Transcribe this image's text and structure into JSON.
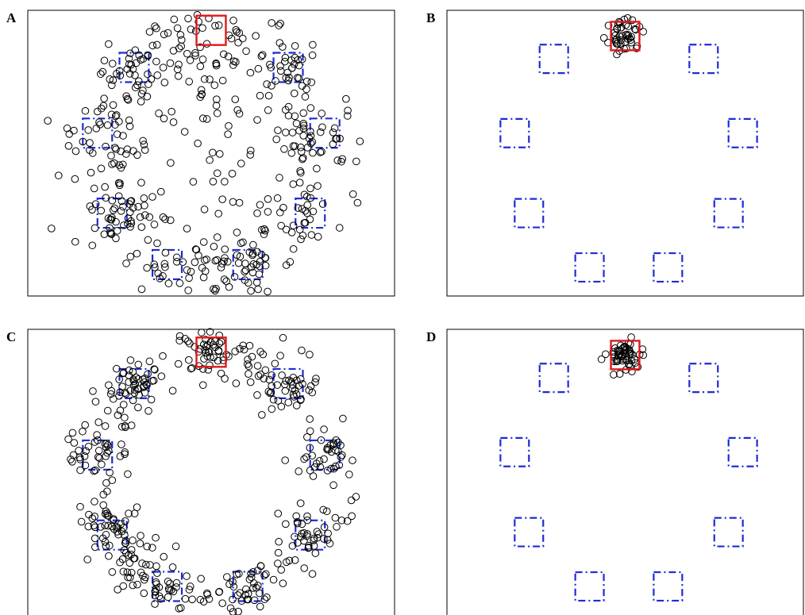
{
  "chart_data": [
    {
      "panel": "A",
      "type": "scatter",
      "xlim": [
        0,
        100
      ],
      "ylim": [
        0,
        100
      ],
      "grid": false,
      "target": {
        "x": 50,
        "y": 93
      },
      "distractors": [
        {
          "x": 29,
          "y": 80
        },
        {
          "x": 71,
          "y": 80
        },
        {
          "x": 19,
          "y": 57
        },
        {
          "x": 81,
          "y": 57
        },
        {
          "x": 23,
          "y": 29
        },
        {
          "x": 77,
          "y": 29
        },
        {
          "x": 38,
          "y": 11
        },
        {
          "x": 60,
          "y": 11
        }
      ],
      "box_half_width": 4,
      "dot_model": {
        "style": "spread",
        "seed": 11,
        "count": 480
      },
      "colors": {
        "target": "#e0191b",
        "distractor": "#1d2bd6",
        "marker": "#000000"
      }
    },
    {
      "panel": "B",
      "type": "scatter",
      "xlim": [
        0,
        100
      ],
      "ylim": [
        0,
        100
      ],
      "grid": false,
      "target": {
        "x": 50,
        "y": 91
      },
      "distractors": [
        {
          "x": 30,
          "y": 83
        },
        {
          "x": 72,
          "y": 83
        },
        {
          "x": 19,
          "y": 57
        },
        {
          "x": 83,
          "y": 57
        },
        {
          "x": 23,
          "y": 29
        },
        {
          "x": 79,
          "y": 29
        },
        {
          "x": 40,
          "y": 10
        },
        {
          "x": 62,
          "y": 10
        }
      ],
      "box_half_width": 4,
      "dot_model": {
        "style": "cluster",
        "seed": 23,
        "count": 46,
        "sd": 2.2
      },
      "colors": {
        "target": "#e0191b",
        "distractor": "#1d2bd6",
        "marker": "#000000"
      }
    },
    {
      "panel": "C",
      "type": "scatter",
      "xlim": [
        0,
        100
      ],
      "ylim": [
        0,
        100
      ],
      "grid": false,
      "target": {
        "x": 50,
        "y": 92
      },
      "distractors": [
        {
          "x": 29,
          "y": 81
        },
        {
          "x": 71,
          "y": 81
        },
        {
          "x": 19,
          "y": 56
        },
        {
          "x": 81,
          "y": 56
        },
        {
          "x": 23,
          "y": 28
        },
        {
          "x": 77,
          "y": 28
        },
        {
          "x": 38,
          "y": 10
        },
        {
          "x": 60,
          "y": 10
        }
      ],
      "box_half_width": 4,
      "dot_model": {
        "style": "ring",
        "seed": 37,
        "count": 470
      },
      "colors": {
        "target": "#e0191b",
        "distractor": "#1d2bd6",
        "marker": "#000000"
      }
    },
    {
      "panel": "D",
      "type": "scatter",
      "xlim": [
        0,
        100
      ],
      "ylim": [
        0,
        100
      ],
      "grid": false,
      "target": {
        "x": 50,
        "y": 91
      },
      "distractors": [
        {
          "x": 30,
          "y": 83
        },
        {
          "x": 72,
          "y": 83
        },
        {
          "x": 19,
          "y": 57
        },
        {
          "x": 83,
          "y": 57
        },
        {
          "x": 23,
          "y": 29
        },
        {
          "x": 79,
          "y": 29
        },
        {
          "x": 40,
          "y": 10
        },
        {
          "x": 62,
          "y": 10
        }
      ],
      "box_half_width": 4,
      "dot_model": {
        "style": "cluster",
        "seed": 53,
        "count": 58,
        "sd": 2.5
      },
      "colors": {
        "target": "#e0191b",
        "distractor": "#1d2bd6",
        "marker": "#000000"
      }
    }
  ]
}
